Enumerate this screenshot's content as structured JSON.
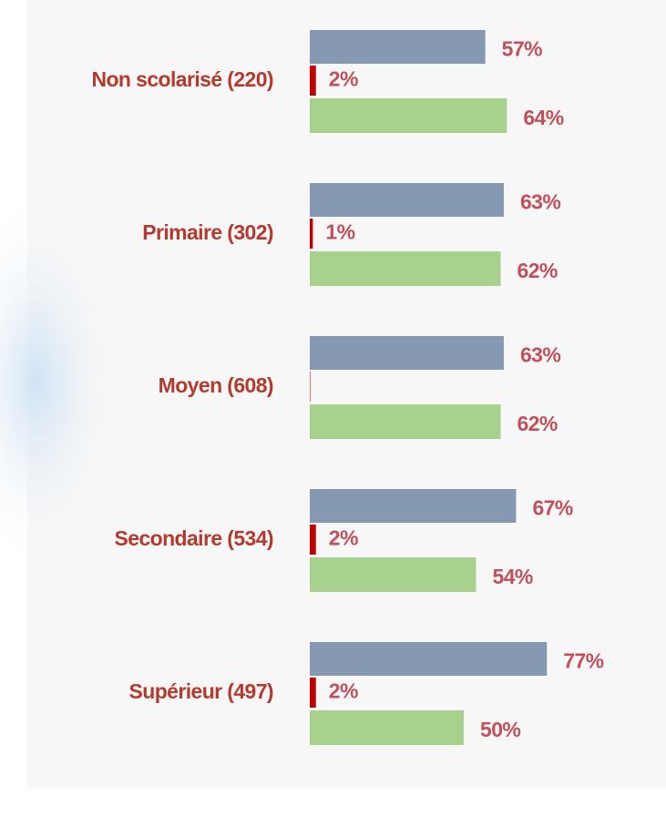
{
  "chart_data": {
    "type": "bar",
    "orientation": "horizontal",
    "categories": [
      "Non scolarisé (220)",
      "Primaire (302)",
      "Moyen (608)",
      "Secondaire (534)",
      "Supérieur (497)"
    ],
    "series": [
      {
        "color": "#8699b3",
        "values": [
          57,
          63,
          63,
          67,
          77
        ],
        "value_labels": [
          "57%",
          "63%",
          "63%",
          "67%",
          "77%"
        ]
      },
      {
        "color": "#c00000",
        "values": [
          2,
          1,
          0,
          2,
          2
        ],
        "value_labels": [
          "2%",
          "1%",
          null,
          "2%",
          "2%"
        ]
      },
      {
        "color": "#a9d18e",
        "values": [
          64,
          62,
          62,
          54,
          50
        ],
        "value_labels": [
          "64%",
          "62%",
          "62%",
          "54%",
          "50%"
        ]
      }
    ]
  }
}
